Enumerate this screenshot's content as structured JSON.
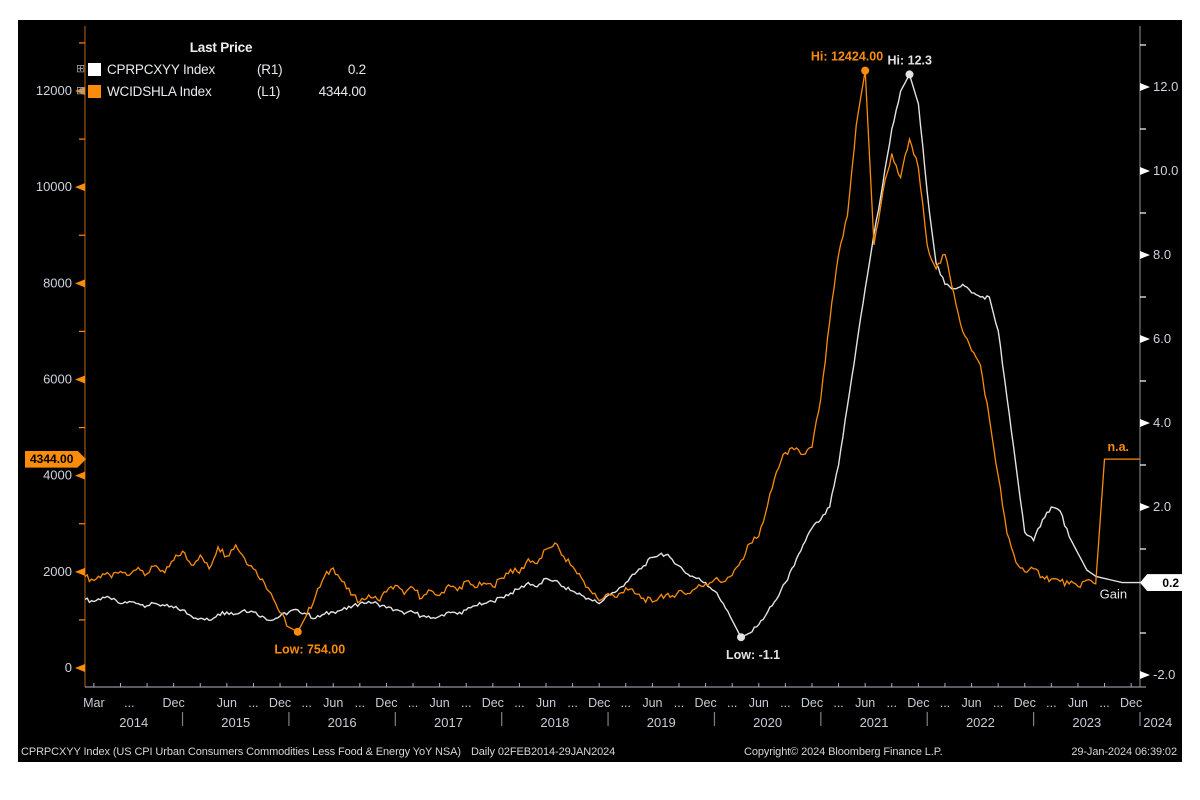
{
  "legend": {
    "title": "Last Price",
    "items": [
      {
        "name": "CPRPCXYY Index",
        "axis": "(R1)",
        "value": "0.2",
        "swatch": "#ffffff"
      },
      {
        "name": "WCIDSHLA Index",
        "axis": "(L1)",
        "value": "4344.00",
        "swatch": "#f98c0a"
      }
    ]
  },
  "axis_tags": {
    "left": {
      "text": "4344.00",
      "bg": "#f98c0a"
    },
    "right": {
      "text": "0.2",
      "bg": "#ffffff"
    }
  },
  "footer": {
    "instrument": "CPRPCXYY Index (US CPI Urban Consumers Commodities Less Food & Energy YoY NSA)",
    "period": "Daily 02FEB2014-29JAN2024",
    "copyright": "Copyright© 2024 Bloomberg Finance L.P.",
    "timestamp": "29-Jan-2024 06:39:02"
  },
  "chart_data": {
    "type": "line",
    "x_unit": "month",
    "x_start": "Feb 2014",
    "x_end": "Jan 2024",
    "grid": false,
    "legend_position": "top-left",
    "series": [
      {
        "id": "CPRPCXYY",
        "name": "CPRPCXYY Index",
        "axis": "right",
        "color": "#e2e2e2",
        "last_value": 0.2,
        "values": [
          -0.2,
          -0.25,
          -0.15,
          -0.2,
          -0.3,
          -0.25,
          -0.3,
          -0.35,
          -0.3,
          -0.35,
          -0.4,
          -0.45,
          -0.6,
          -0.65,
          -0.7,
          -0.55,
          -0.5,
          -0.55,
          -0.45,
          -0.5,
          -0.6,
          -0.7,
          -0.6,
          -0.5,
          -0.45,
          -0.55,
          -0.65,
          -0.55,
          -0.5,
          -0.45,
          -0.4,
          -0.3,
          -0.25,
          -0.3,
          -0.4,
          -0.45,
          -0.55,
          -0.5,
          -0.6,
          -0.65,
          -0.6,
          -0.5,
          -0.55,
          -0.45,
          -0.35,
          -0.3,
          -0.25,
          -0.15,
          -0.05,
          0.05,
          0.2,
          0.1,
          0.3,
          0.25,
          0.1,
          0.0,
          -0.1,
          -0.2,
          -0.3,
          -0.1,
          0.0,
          0.2,
          0.4,
          0.6,
          0.8,
          0.9,
          0.8,
          0.6,
          0.4,
          0.3,
          0.2,
          0.0,
          -0.3,
          -0.7,
          -1.1,
          -1.0,
          -0.8,
          -0.5,
          -0.2,
          0.2,
          0.6,
          1.1,
          1.5,
          1.7,
          2.0,
          3.0,
          4.4,
          5.8,
          7.2,
          8.5,
          9.7,
          11.0,
          11.9,
          12.3,
          11.6,
          9.5,
          7.8,
          7.3,
          7.2,
          7.3,
          7.1,
          7.0,
          7.0,
          6.2,
          4.6,
          3.0,
          1.4,
          1.2,
          1.7,
          2.0,
          1.9,
          1.3,
          0.9,
          0.5,
          0.35,
          0.3,
          0.25,
          0.2,
          0.2,
          0.2
        ]
      },
      {
        "id": "WCIDSHLA",
        "name": "WCIDSHLA Index",
        "axis": "left",
        "color": "#f98c0a",
        "last_value": 4344.0,
        "values": [
          1900,
          1820,
          1960,
          1880,
          2010,
          1930,
          2090,
          1960,
          2130,
          1980,
          2240,
          2430,
          2140,
          2350,
          2060,
          2520,
          2330,
          2560,
          2280,
          2060,
          1850,
          1550,
          1150,
          850,
          754,
          1100,
          1500,
          1900,
          2080,
          1800,
          1520,
          1380,
          1520,
          1420,
          1580,
          1720,
          1530,
          1670,
          1450,
          1610,
          1510,
          1730,
          1610,
          1810,
          1670,
          1770,
          1690,
          1870,
          2050,
          1970,
          2270,
          2170,
          2470,
          2600,
          2320,
          2110,
          1870,
          1610,
          1400,
          1550,
          1470,
          1670,
          1550,
          1450,
          1370,
          1530,
          1470,
          1610,
          1550,
          1670,
          1750,
          1840,
          1790,
          1930,
          2240,
          2590,
          2740,
          3390,
          4080,
          4480,
          4540,
          4440,
          4590,
          5600,
          7200,
          8600,
          9400,
          11300,
          12424,
          8800,
          9900,
          10700,
          10200,
          11000,
          10400,
          8800,
          8300,
          8600,
          7800,
          7000,
          6600,
          6300,
          5200,
          4000,
          2800,
          2200,
          2000,
          2060,
          1900,
          1850,
          1800,
          1750,
          1700,
          1830,
          1750,
          4344,
          4344,
          4344,
          4344,
          4344
        ]
      }
    ],
    "left_axis": {
      "major_ticks": [
        0,
        2000,
        4000,
        6000,
        8000,
        10000,
        12000
      ],
      "minor_ticks": [
        1000,
        3000,
        5000,
        7000,
        9000,
        11000,
        13000
      ],
      "tick_color": "#f98c0a",
      "label_color": "#cdd3dd",
      "axis_line_color": "#7a4210",
      "current_value": 4344.0
    },
    "right_axis": {
      "major_ticks": [
        -2.0,
        2.0,
        4.0,
        6.0,
        8.0,
        10.0,
        12.0
      ],
      "minor_ticks": [
        -1,
        1,
        3,
        5,
        7,
        9,
        11,
        13
      ],
      "tick_color": "#ffffff",
      "label_color": "#cdd3dd",
      "axis_line_color": "#8f949b",
      "current_value": 0.2
    },
    "x_axis": {
      "label_color": "#c6ccd6",
      "line_color": "#8f949b",
      "month_tokens": [
        {
          "t": 1,
          "label": "Mar"
        },
        {
          "t": 5,
          "label": "..."
        },
        {
          "t": 10,
          "label": "Dec"
        },
        {
          "t": 16,
          "label": "Jun"
        },
        {
          "t": 19,
          "label": "..."
        },
        {
          "t": 22,
          "label": "Dec"
        },
        {
          "t": 25,
          "label": "..."
        },
        {
          "t": 28,
          "label": "Jun"
        },
        {
          "t": 31,
          "label": "..."
        },
        {
          "t": 34,
          "label": "Dec"
        },
        {
          "t": 37,
          "label": "..."
        },
        {
          "t": 40,
          "label": "Jun"
        },
        {
          "t": 43,
          "label": "..."
        },
        {
          "t": 46,
          "label": "Dec"
        },
        {
          "t": 49,
          "label": "..."
        },
        {
          "t": 52,
          "label": "Jun"
        },
        {
          "t": 55,
          "label": "..."
        },
        {
          "t": 58,
          "label": "Dec"
        },
        {
          "t": 61,
          "label": "..."
        },
        {
          "t": 64,
          "label": "Jun"
        },
        {
          "t": 67,
          "label": "..."
        },
        {
          "t": 70,
          "label": "Dec"
        },
        {
          "t": 73,
          "label": "..."
        },
        {
          "t": 76,
          "label": "Jun"
        },
        {
          "t": 79,
          "label": "..."
        },
        {
          "t": 82,
          "label": "Dec"
        },
        {
          "t": 85,
          "label": "..."
        },
        {
          "t": 88,
          "label": "Jun"
        },
        {
          "t": 91,
          "label": "..."
        },
        {
          "t": 94,
          "label": "Dec"
        },
        {
          "t": 97,
          "label": "..."
        },
        {
          "t": 100,
          "label": "Jun"
        },
        {
          "t": 103,
          "label": "..."
        },
        {
          "t": 106,
          "label": "Dec"
        },
        {
          "t": 109,
          "label": "..."
        },
        {
          "t": 112,
          "label": "Jun"
        },
        {
          "t": 115,
          "label": "..."
        },
        {
          "t": 118,
          "label": "Dec"
        }
      ],
      "years": [
        {
          "label": "2014",
          "t": 5.5
        },
        {
          "label": "2015",
          "t": 17
        },
        {
          "label": "2016",
          "t": 29
        },
        {
          "label": "2017",
          "t": 41
        },
        {
          "label": "2018",
          "t": 53
        },
        {
          "label": "2019",
          "t": 65
        },
        {
          "label": "2020",
          "t": 77
        },
        {
          "label": "2021",
          "t": 89
        },
        {
          "label": "2022",
          "t": 101
        },
        {
          "label": "2023",
          "t": 113
        },
        {
          "label": "2024",
          "t": 121
        }
      ],
      "year_separators_t": [
        11,
        23,
        35,
        47,
        59,
        71,
        83,
        95,
        107,
        119
      ]
    },
    "annotations": [
      {
        "series": "WCIDSHLA",
        "kind": "high",
        "t": 88,
        "value": 12424.0,
        "label": "Hi: 12424.00"
      },
      {
        "series": "CPRPCXYY",
        "kind": "high",
        "t": 93,
        "value": 12.3,
        "label": "Hi: 12.3"
      },
      {
        "series": "WCIDSHLA",
        "kind": "low",
        "t": 24,
        "value": 754.0,
        "label": "Low: 754.00"
      },
      {
        "series": "CPRPCXYY",
        "kind": "low",
        "t": 74,
        "value": -1.1,
        "label": "Low: -1.1"
      },
      {
        "series": "WCIDSHLA",
        "kind": "na",
        "t": 117,
        "value": 4344.0,
        "label": "n.a."
      },
      {
        "series": "CPRPCXYY",
        "kind": "gain",
        "t": 116,
        "value": 0.2,
        "label": "Gain"
      }
    ],
    "ylim_left": [
      -400,
      13300
    ],
    "ylim_right": [
      -2.3,
      13.5
    ]
  }
}
